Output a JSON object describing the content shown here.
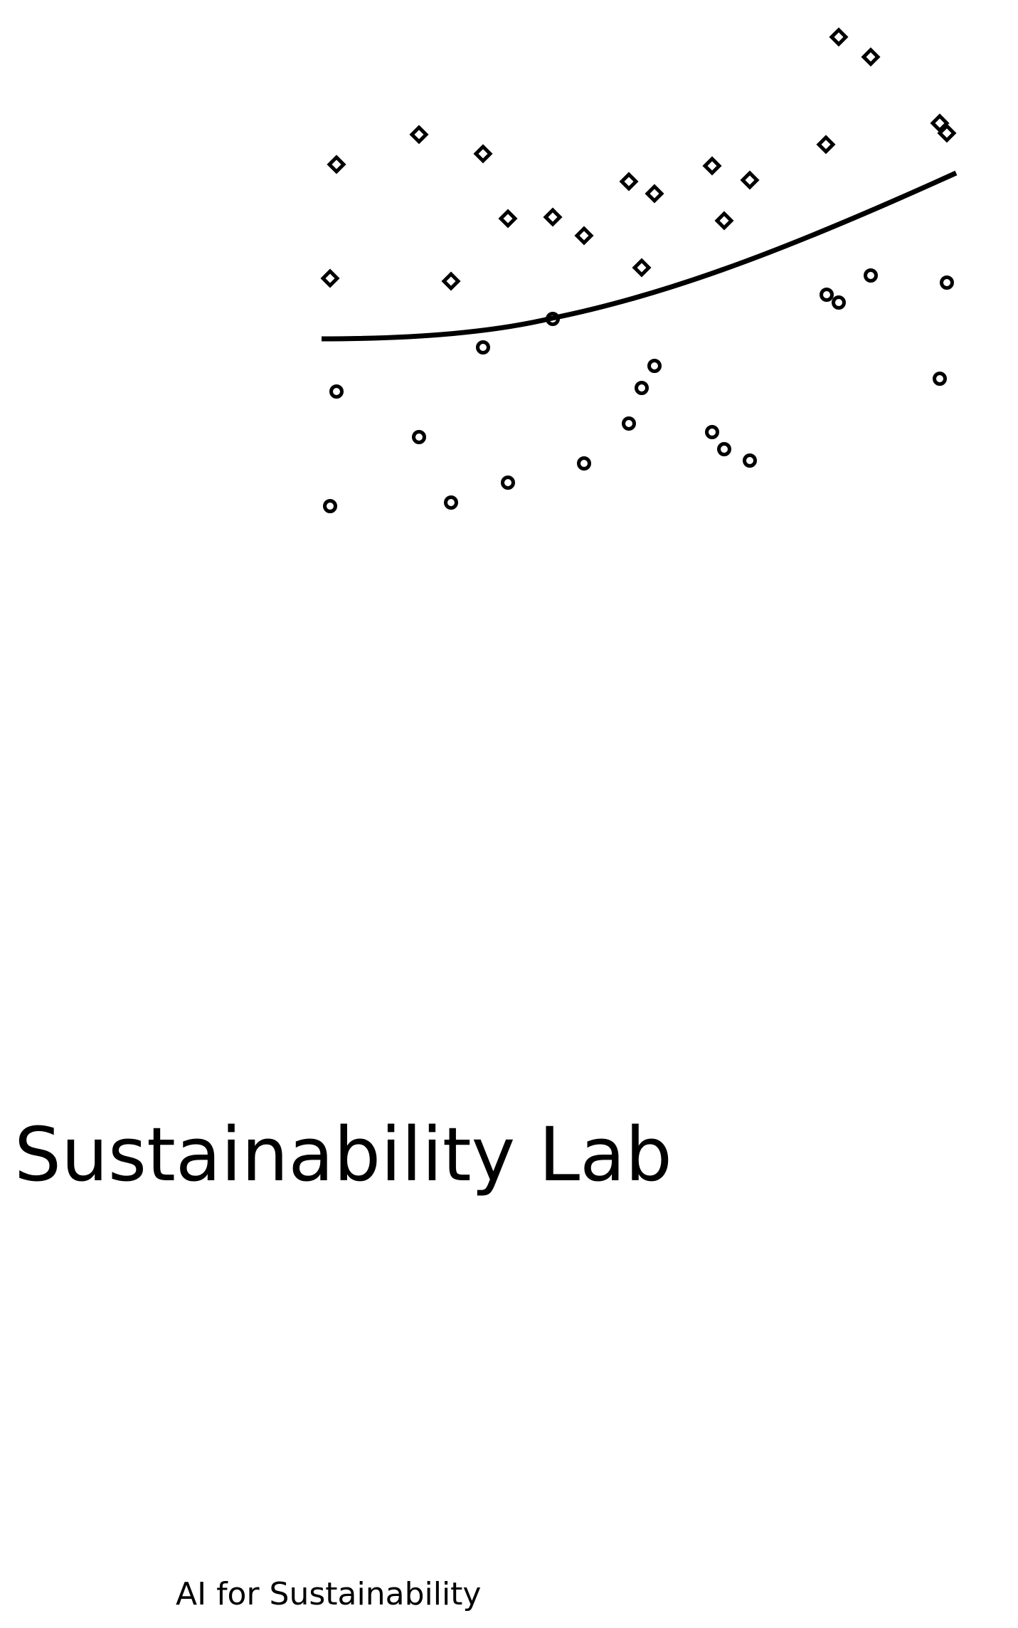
{
  "brand": {
    "name": "Sustainability Lab",
    "tagline": "AI for Sustainability",
    "ink_color": "#000000",
    "background_color": "#ffffff"
  },
  "logo": {
    "kind": "scatter-plot-with-trend-curve",
    "marker_shapes": [
      "diamond",
      "circle"
    ],
    "icon_name": "scatter-trend-logo-icon"
  }
}
